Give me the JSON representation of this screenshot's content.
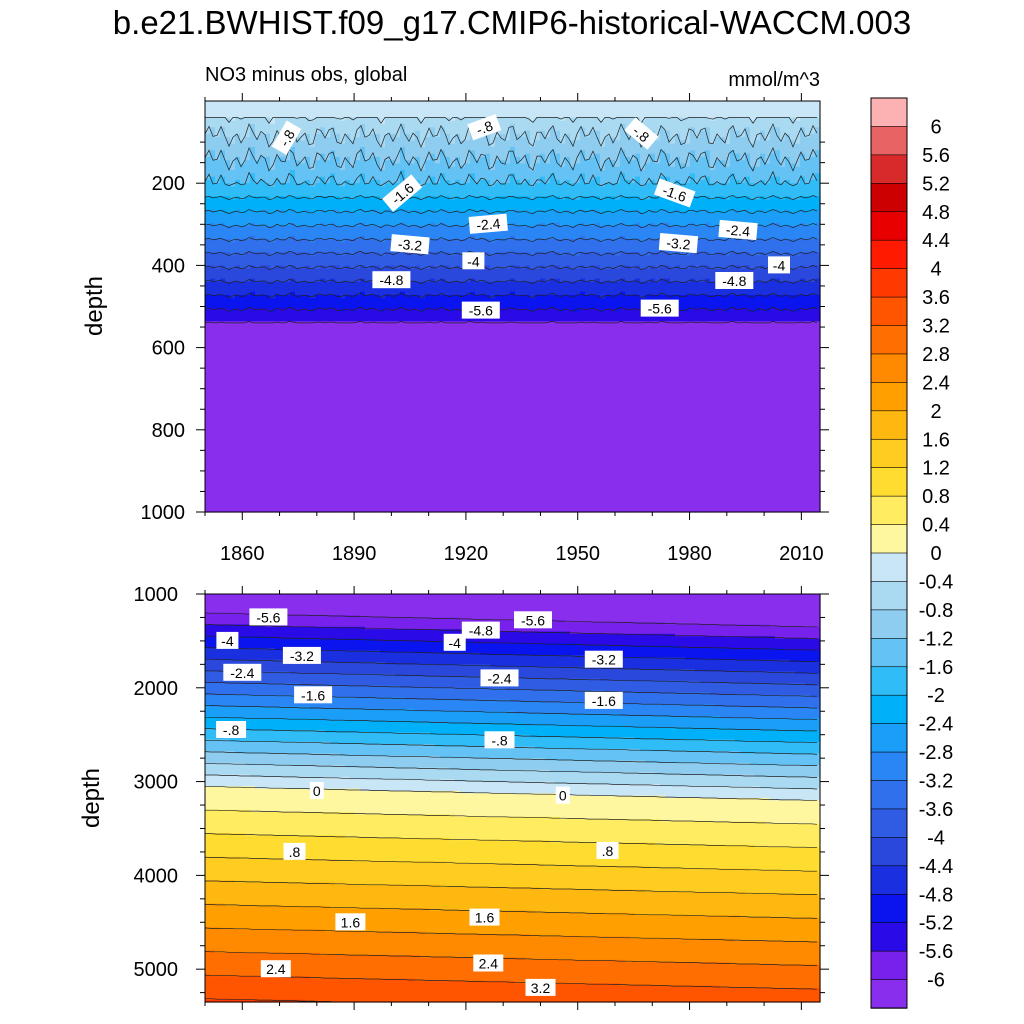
{
  "title": "b.e21.BWHIST.f09_g17.CMIP6-historical-WACCM.003",
  "chart_data": [
    {
      "type": "heatmap",
      "panel": "top",
      "subtitle_left": "NO3 minus obs, global",
      "subtitle_right": "mmol/m^3",
      "ylabel": "depth",
      "xlabel": "",
      "xlim": [
        1850,
        2015
      ],
      "ylim": [
        1000,
        0
      ],
      "x_ticks": [
        1860,
        1890,
        1920,
        1950,
        1980,
        2010
      ],
      "y_ticks": [
        200,
        400,
        600,
        800,
        1000
      ],
      "contour_labels": [
        {
          "text": "-.8",
          "x": 1872,
          "y": 90,
          "rot": -60
        },
        {
          "text": "-.8",
          "x": 1925,
          "y": 65,
          "rot": -20
        },
        {
          "text": "-.8",
          "x": 1967,
          "y": 80,
          "rot": 40
        },
        {
          "text": "-1.6",
          "x": 1903,
          "y": 225,
          "rot": -40
        },
        {
          "text": "-1.6",
          "x": 1976,
          "y": 225,
          "rot": 20
        },
        {
          "text": "-2.4",
          "x": 1926,
          "y": 300,
          "rot": -5
        },
        {
          "text": "-2.4",
          "x": 1993,
          "y": 315,
          "rot": 5
        },
        {
          "text": "-3.2",
          "x": 1905,
          "y": 350,
          "rot": 5
        },
        {
          "text": "-3.2",
          "x": 1977,
          "y": 347,
          "rot": 5
        },
        {
          "text": "-4",
          "x": 1922,
          "y": 390,
          "rot": 0
        },
        {
          "text": "-4",
          "x": 2004,
          "y": 400,
          "rot": 0
        },
        {
          "text": "-4.8",
          "x": 1900,
          "y": 436,
          "rot": 0
        },
        {
          "text": "-4.8",
          "x": 1992,
          "y": 438,
          "rot": 0
        },
        {
          "text": "-5.6",
          "x": 1924,
          "y": 510,
          "rot": 0
        },
        {
          "text": "-5.6",
          "x": 1972,
          "y": 505,
          "rot": 0
        }
      ]
    },
    {
      "type": "heatmap",
      "panel": "bottom",
      "ylabel": "depth",
      "xlabel": "",
      "xlim": [
        1850,
        2015
      ],
      "ylim": [
        5350,
        1000
      ],
      "y_ticks": [
        1000,
        2000,
        3000,
        4000,
        5000
      ],
      "contour_labels": [
        {
          "text": "-5.6",
          "x": 1867,
          "y": 1250
        },
        {
          "text": "-5.6",
          "x": 1938,
          "y": 1280
        },
        {
          "text": "-4.8",
          "x": 1924,
          "y": 1390
        },
        {
          "text": "-4",
          "x": 1856,
          "y": 1500
        },
        {
          "text": "-4",
          "x": 1917,
          "y": 1520
        },
        {
          "text": "-3.2",
          "x": 1876,
          "y": 1660
        },
        {
          "text": "-3.2",
          "x": 1957,
          "y": 1700
        },
        {
          "text": "-2.4",
          "x": 1860,
          "y": 1840
        },
        {
          "text": "-2.4",
          "x": 1929,
          "y": 1900
        },
        {
          "text": "-1.6",
          "x": 1879,
          "y": 2080
        },
        {
          "text": "-1.6",
          "x": 1957,
          "y": 2140
        },
        {
          "text": "-.8",
          "x": 1857,
          "y": 2450
        },
        {
          "text": "-.8",
          "x": 1929,
          "y": 2560
        },
        {
          "text": "0",
          "x": 1880,
          "y": 3100
        },
        {
          "text": "0",
          "x": 1946,
          "y": 3150
        },
        {
          "text": ".8",
          "x": 1874,
          "y": 3750
        },
        {
          "text": ".8",
          "x": 1958,
          "y": 3740
        },
        {
          "text": "1.6",
          "x": 1889,
          "y": 4500
        },
        {
          "text": "1.6",
          "x": 1925,
          "y": 4450
        },
        {
          "text": "2.4",
          "x": 1869,
          "y": 5000
        },
        {
          "text": "2.4",
          "x": 1926,
          "y": 4940
        },
        {
          "text": "3.2",
          "x": 1940,
          "y": 5200
        }
      ]
    }
  ],
  "colorbar": {
    "labels": [
      "6",
      "5.6",
      "5.2",
      "4.8",
      "4.4",
      "4",
      "3.6",
      "3.2",
      "2.8",
      "2.4",
      "2",
      "1.6",
      "1.2",
      "0.8",
      "0.4",
      "0",
      "-0.4",
      "-0.8",
      "-1.2",
      "-1.6",
      "-2",
      "-2.4",
      "-2.8",
      "-3.2",
      "-3.6",
      "-4",
      "-4.4",
      "-4.8",
      "-5.2",
      "-5.6",
      "-6"
    ],
    "colors": [
      "#fcb2b2",
      "#e86464",
      "#d82a2a",
      "#cc0000",
      "#e80000",
      "#ff1a00",
      "#ff3a00",
      "#ff5500",
      "#ff6e00",
      "#ff8a00",
      "#ffa000",
      "#ffb810",
      "#ffcc20",
      "#ffdc30",
      "#ffec60",
      "#fff6a0",
      "#c8e6f6",
      "#aadaf2",
      "#8ecdf0",
      "#64c3f4",
      "#30bcf6",
      "#00b0f8",
      "#1a9ef8",
      "#2a86f4",
      "#3070ec",
      "#305ce4",
      "#2a48dc",
      "#1a30e0",
      "#0a14ee",
      "#2a0ae6",
      "#7820ec",
      "#8a2eee"
    ]
  }
}
